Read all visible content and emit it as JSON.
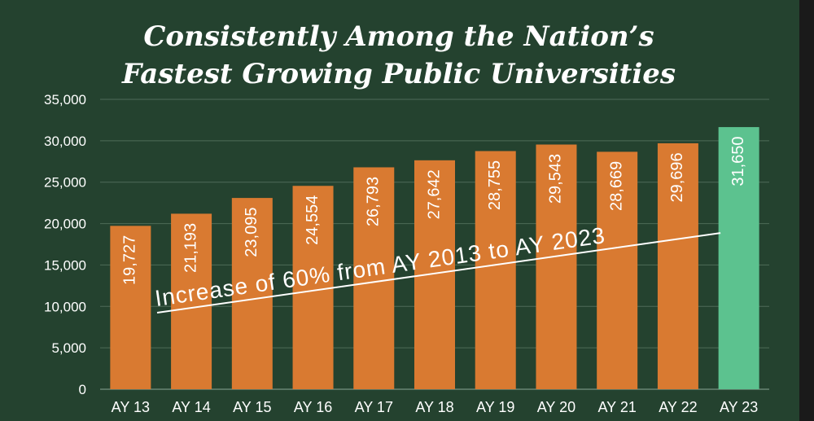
{
  "chart_data": {
    "type": "bar",
    "title_line1": "Consistently Among the Nation’s",
    "title_line2": "Fastest Growing Public Universities",
    "categories": [
      "AY 13",
      "AY 14",
      "AY 15",
      "AY 16",
      "AY 17",
      "AY 18",
      "AY 19",
      "AY 20",
      "AY 21",
      "AY 22",
      "AY 23"
    ],
    "values": [
      19727,
      21193,
      23095,
      24554,
      26793,
      27642,
      28755,
      29543,
      28669,
      29696,
      31650
    ],
    "value_labels": [
      "19,727",
      "21,193",
      "23,095",
      "24,554",
      "26,793",
      "27,642",
      "28,755",
      "29,543",
      "28,669",
      "29,696",
      "31,650"
    ],
    "ylim": [
      0,
      35000
    ],
    "yticks": [
      0,
      5000,
      10000,
      15000,
      20000,
      25000,
      30000,
      35000
    ],
    "ytick_labels": [
      "0",
      "5,000",
      "10,000",
      "15,000",
      "20,000",
      "25,000",
      "30,000",
      "35,000"
    ],
    "grid": true,
    "annotation": "Increase of 60% from AY 2013 to AY 2023",
    "colors": {
      "bar": "#d97a31",
      "highlight_bar": "#5cc28f",
      "background": "#24422f",
      "grid": "#4e6b58",
      "text": "#ffffff"
    }
  }
}
